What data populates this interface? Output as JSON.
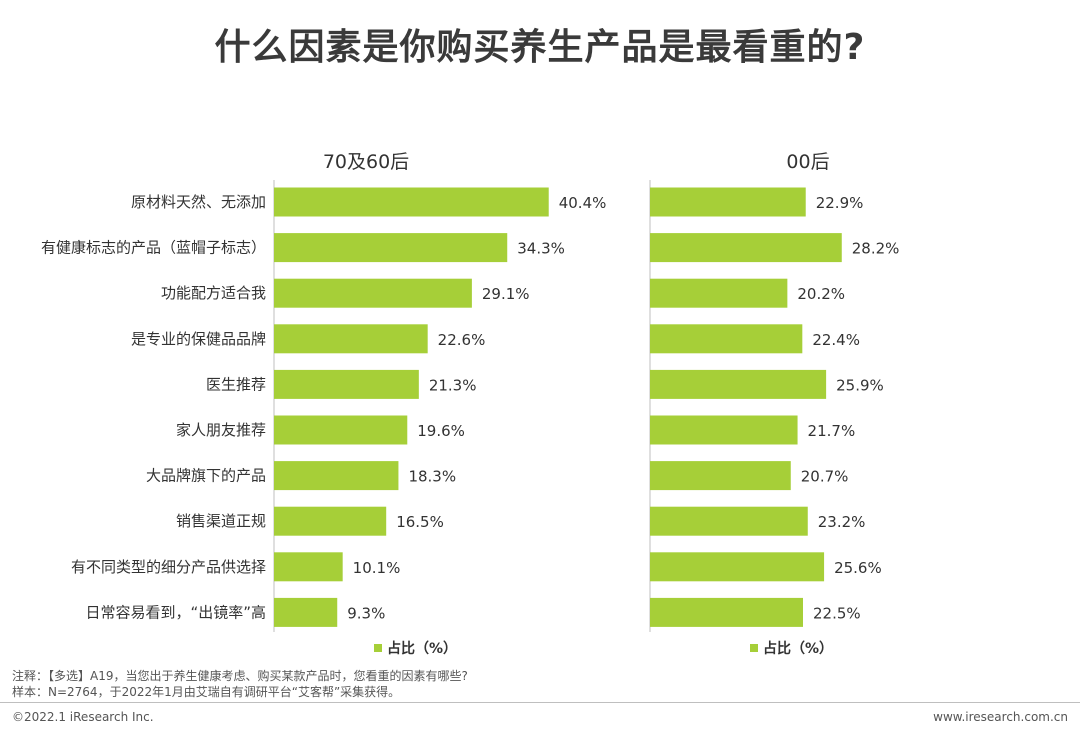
{
  "title": "什么因素是你购买养生产品是最看重的?",
  "chart_data": {
    "type": "bar",
    "orientation": "horizontal",
    "categories": [
      "原材料天然、无添加",
      "有健康标志的产品（蓝帽子标志）",
      "功能配方适合我",
      "是专业的保健品品牌",
      "医生推荐",
      "家人朋友推荐",
      "大品牌旗下的产品",
      "销售渠道正规",
      "有不同类型的细分产品供选择",
      "日常容易看到，“出镜率”高"
    ],
    "series": [
      {
        "name": "70及60后",
        "values": [
          40.4,
          34.3,
          29.1,
          22.6,
          21.3,
          19.6,
          18.3,
          16.5,
          10.1,
          9.3
        ],
        "labels": [
          "40.4%",
          "34.3%",
          "29.1%",
          "22.6%",
          "21.3%",
          "19.6%",
          "18.3%",
          "16.5%",
          "10.1%",
          "9.3%"
        ]
      },
      {
        "name": "00后",
        "values": [
          22.9,
          28.2,
          20.2,
          22.4,
          25.9,
          21.7,
          20.7,
          23.2,
          25.6,
          22.5
        ],
        "labels": [
          "22.9%",
          "28.2%",
          "20.2%",
          "22.4%",
          "25.9%",
          "21.7%",
          "20.7%",
          "23.2%",
          "25.6%",
          "22.5%"
        ]
      }
    ],
    "legend": "占比（%）",
    "bar_color": "#a6cf38",
    "xlim": [
      0,
      45
    ]
  },
  "notes": {
    "note": "注释：【多选】A19，当您出于养生健康考虑、购买某款产品时，您看重的因素有哪些?",
    "sample": "样本：N=2764，于2022年1月由艾瑞自有调研平台“艾客帮”采集获得。"
  },
  "footer": {
    "copyright": "©2022.1 iResearch Inc.",
    "website": "www.iresearch.com.cn"
  }
}
